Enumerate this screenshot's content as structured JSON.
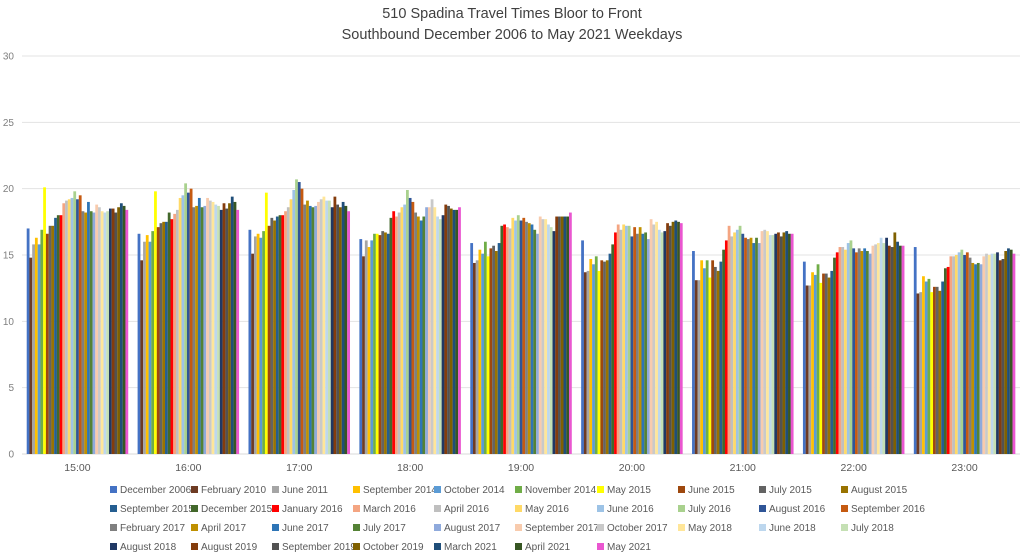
{
  "chart_data": {
    "type": "bar",
    "title": "510 Spadina Travel Times Bloor to Front",
    "subtitle": "Southbound December 2006 to May 2021 Weekdays",
    "xlabel": "",
    "ylabel": "",
    "ylim": [
      0,
      30
    ],
    "yticks": [
      "0",
      "5",
      "10",
      "15",
      "20",
      "25",
      "30"
    ],
    "grid": true,
    "legend_position": "bottom",
    "categories": [
      "15:00",
      "16:00",
      "17:00",
      "18:00",
      "19:00",
      "20:00",
      "21:00",
      "22:00",
      "23:00"
    ],
    "series": [
      {
        "name": "December 2006",
        "color": "#4472c4",
        "values": [
          17.0,
          16.6,
          16.9,
          16.2,
          15.9,
          16.1,
          15.3,
          14.5,
          15.6
        ]
      },
      {
        "name": "February 2010",
        "color": "#6e3b23",
        "values": [
          14.8,
          14.6,
          15.1,
          14.9,
          14.4,
          13.7,
          13.1,
          12.7,
          12.1
        ]
      },
      {
        "name": "June 2011",
        "color": "#a5a5a5",
        "values": [
          15.8,
          16.0,
          16.4,
          16.1,
          14.6,
          13.8,
          13.1,
          12.7,
          12.2
        ]
      },
      {
        "name": "September 2014",
        "color": "#ffc000",
        "values": [
          16.3,
          16.5,
          16.6,
          15.6,
          15.4,
          14.7,
          14.6,
          13.7,
          13.4
        ]
      },
      {
        "name": "October 2014",
        "color": "#5b9bd5",
        "values": [
          15.8,
          16.0,
          16.3,
          16.1,
          15.1,
          14.3,
          14.0,
          13.5,
          13.0
        ]
      },
      {
        "name": "November 2014",
        "color": "#70ad47",
        "values": [
          16.9,
          16.8,
          16.8,
          16.6,
          16.0,
          14.9,
          14.6,
          14.3,
          13.2
        ]
      },
      {
        "name": "May 2015",
        "color": "#ffff00",
        "values": [
          20.1,
          19.8,
          19.7,
          16.6,
          14.9,
          13.8,
          13.3,
          12.9,
          12.2
        ]
      },
      {
        "name": "June 2015",
        "color": "#9e480e",
        "values": [
          16.6,
          17.1,
          17.2,
          16.5,
          15.5,
          14.6,
          14.6,
          13.6,
          12.6
        ]
      },
      {
        "name": "July 2015",
        "color": "#636363",
        "values": [
          17.2,
          17.4,
          17.8,
          16.8,
          15.7,
          14.5,
          14.1,
          13.6,
          12.6
        ]
      },
      {
        "name": "August 2015",
        "color": "#997300",
        "values": [
          17.2,
          17.5,
          17.6,
          16.7,
          15.3,
          14.6,
          13.8,
          13.3,
          12.3
        ]
      },
      {
        "name": "September 2015",
        "color": "#255e91",
        "values": [
          17.8,
          17.5,
          17.9,
          16.6,
          15.9,
          15.1,
          14.5,
          13.8,
          13.0
        ]
      },
      {
        "name": "December 2015",
        "color": "#43682b",
        "values": [
          18.0,
          18.2,
          18.0,
          17.8,
          17.2,
          15.8,
          15.4,
          14.8,
          14.0
        ]
      },
      {
        "name": "January 2016",
        "color": "#ff0000",
        "values": [
          18.0,
          17.7,
          18.0,
          18.3,
          17.3,
          16.7,
          16.1,
          15.2,
          14.1
        ]
      },
      {
        "name": "March 2016",
        "color": "#f4a582",
        "values": [
          18.9,
          18.1,
          18.3,
          17.9,
          17.1,
          17.3,
          17.2,
          15.6,
          14.9
        ]
      },
      {
        "name": "April 2016",
        "color": "#bfbfbf",
        "values": [
          19.1,
          18.4,
          18.6,
          18.2,
          17.0,
          16.9,
          16.4,
          15.6,
          14.9
        ]
      },
      {
        "name": "May 2016",
        "color": "#ffd966",
        "values": [
          19.2,
          19.3,
          19.2,
          18.6,
          17.8,
          17.3,
          16.7,
          15.4,
          15.0
        ]
      },
      {
        "name": "June 2016",
        "color": "#9dc3e6",
        "values": [
          19.3,
          19.5,
          19.9,
          18.8,
          17.6,
          17.2,
          16.9,
          15.9,
          15.2
        ]
      },
      {
        "name": "July 2016",
        "color": "#a9d18e",
        "values": [
          19.8,
          20.4,
          20.7,
          19.9,
          18.0,
          17.2,
          17.2,
          16.1,
          15.4
        ]
      },
      {
        "name": "August 2016",
        "color": "#2f5597",
        "values": [
          19.2,
          19.7,
          20.5,
          19.3,
          17.6,
          16.4,
          16.6,
          15.5,
          15.0
        ]
      },
      {
        "name": "September 2016",
        "color": "#c55a11",
        "values": [
          19.5,
          20.0,
          20.0,
          19.0,
          17.8,
          17.1,
          16.3,
          15.2,
          15.2
        ]
      },
      {
        "name": "February 2017",
        "color": "#7f7f7f",
        "values": [
          18.3,
          18.6,
          18.8,
          18.2,
          17.5,
          16.6,
          16.2,
          15.5,
          14.8
        ]
      },
      {
        "name": "April 2017",
        "color": "#bf9000",
        "values": [
          18.2,
          18.7,
          19.1,
          17.9,
          17.4,
          17.1,
          16.3,
          15.3,
          14.4
        ]
      },
      {
        "name": "June 2017",
        "color": "#2e75b6",
        "values": [
          19.0,
          19.3,
          18.7,
          17.6,
          17.3,
          16.6,
          15.9,
          15.5,
          14.3
        ]
      },
      {
        "name": "July 2017",
        "color": "#548235",
        "values": [
          18.3,
          18.6,
          18.6,
          17.9,
          16.9,
          16.7,
          16.3,
          15.3,
          14.4
        ]
      },
      {
        "name": "August 2017",
        "color": "#8faadc",
        "values": [
          18.2,
          18.7,
          18.7,
          18.6,
          16.6,
          16.2,
          15.9,
          15.1,
          14.3
        ]
      },
      {
        "name": "September 2017",
        "color": "#f8cbad",
        "values": [
          18.8,
          19.3,
          19.0,
          18.6,
          17.9,
          17.7,
          16.8,
          15.7,
          14.9
        ]
      },
      {
        "name": "October 2017",
        "color": "#c9c9c9",
        "values": [
          18.6,
          19.1,
          19.2,
          19.2,
          17.7,
          17.3,
          16.9,
          15.8,
          15.1
        ]
      },
      {
        "name": "May 2018",
        "color": "#ffe699",
        "values": [
          18.3,
          19.0,
          19.4,
          18.6,
          17.7,
          17.5,
          16.8,
          15.9,
          15.0
        ]
      },
      {
        "name": "June 2018",
        "color": "#bdd7ee",
        "values": [
          18.2,
          18.8,
          19.1,
          17.9,
          17.3,
          16.9,
          16.5,
          16.3,
          15.1
        ]
      },
      {
        "name": "July 2018",
        "color": "#c5e0b4",
        "values": [
          18.3,
          18.7,
          19.1,
          17.7,
          17.1,
          16.7,
          16.5,
          15.9,
          15.1
        ]
      },
      {
        "name": "August 2018",
        "color": "#203864",
        "values": [
          18.5,
          18.4,
          18.6,
          18.0,
          16.8,
          16.8,
          16.6,
          16.3,
          15.2
        ]
      },
      {
        "name": "August 2019",
        "color": "#843c0c",
        "values": [
          18.5,
          18.9,
          19.4,
          18.8,
          17.9,
          17.4,
          16.7,
          15.7,
          14.6
        ]
      },
      {
        "name": "September 2019",
        "color": "#525252",
        "values": [
          18.2,
          18.5,
          18.8,
          18.7,
          17.9,
          17.2,
          16.4,
          15.6,
          14.7
        ]
      },
      {
        "name": "October 2019",
        "color": "#7f6000",
        "values": [
          18.6,
          18.9,
          18.6,
          18.5,
          17.9,
          17.5,
          16.7,
          16.7,
          15.3
        ]
      },
      {
        "name": "March 2021",
        "color": "#1f4e79",
        "values": [
          18.9,
          19.4,
          19.0,
          18.4,
          17.9,
          17.6,
          16.8,
          16.0,
          15.5
        ]
      },
      {
        "name": "April 2021",
        "color": "#375623",
        "values": [
          18.7,
          19.0,
          18.7,
          18.4,
          17.9,
          17.5,
          16.6,
          15.7,
          15.4
        ]
      },
      {
        "name": "May 2021",
        "color": "#ea56d0",
        "values": [
          18.4,
          18.4,
          18.3,
          18.6,
          18.2,
          17.4,
          16.6,
          15.7,
          15.1
        ]
      }
    ]
  }
}
